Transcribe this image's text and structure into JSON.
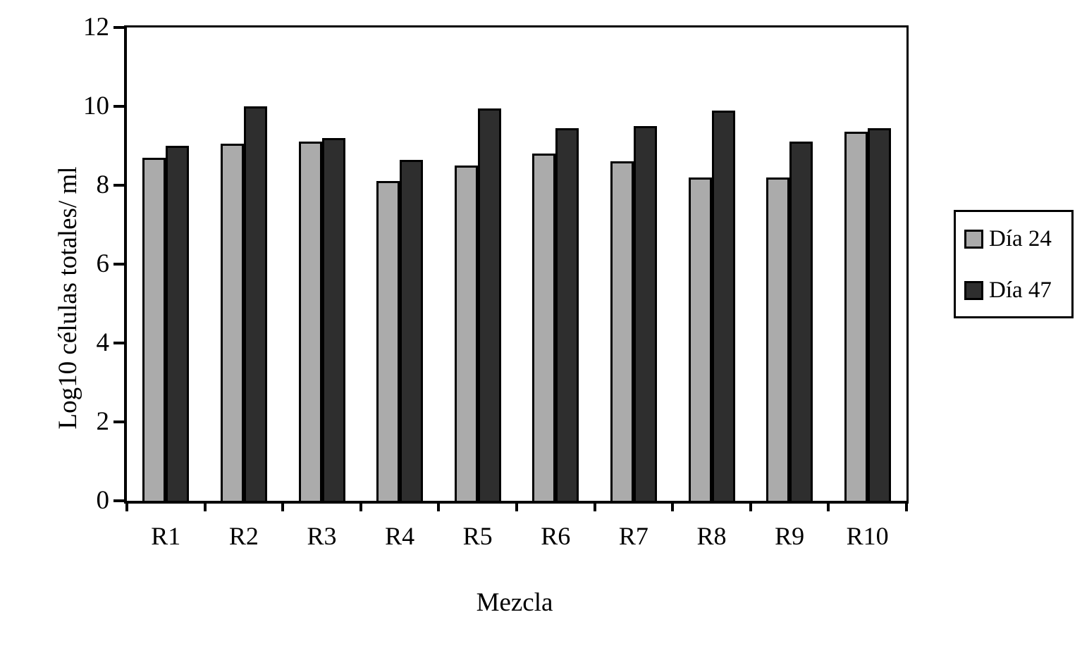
{
  "chart_data": {
    "type": "bar",
    "title": "",
    "categories": [
      "R1",
      "R2",
      "R3",
      "R4",
      "R5",
      "R6",
      "R7",
      "R8",
      "R9",
      "R10"
    ],
    "series": [
      {
        "name": "Día 24",
        "color": "#ababab",
        "values": [
          8.7,
          9.05,
          9.1,
          8.1,
          8.5,
          8.8,
          8.6,
          8.2,
          8.2,
          9.35
        ]
      },
      {
        "name": "Día 47",
        "color": "#2e2e2e",
        "values": [
          9.0,
          10.0,
          9.2,
          8.65,
          9.95,
          9.45,
          9.5,
          9.9,
          9.1,
          9.45
        ]
      }
    ],
    "xlabel": "Mezcla",
    "ylabel": "Log10 células totales/ ml",
    "ylim": [
      0,
      12
    ],
    "yticks": [
      0,
      2,
      4,
      6,
      8,
      10,
      12
    ],
    "grid": false,
    "legend_position": "right",
    "plot_border_color": "#000000",
    "background_color": "#ffffff"
  }
}
